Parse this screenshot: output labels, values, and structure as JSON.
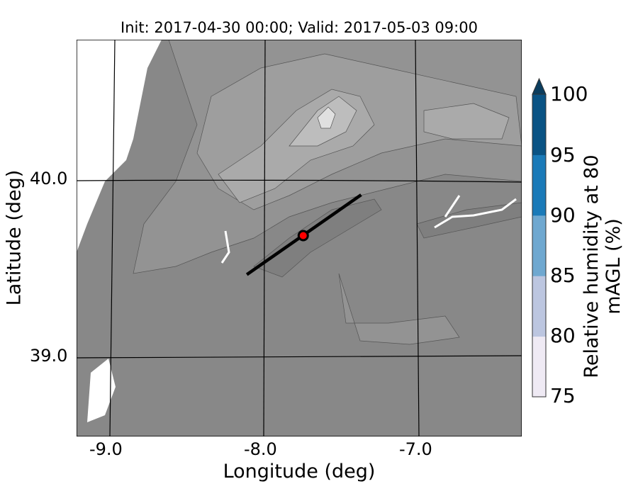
{
  "title": "Init: 2017-04-30 00:00; Valid: 2017-05-03 09:00",
  "xaxis": {
    "label": "Longitude (deg)",
    "ticks": [
      "-9.0",
      "-8.0",
      "-7.0"
    ]
  },
  "yaxis": {
    "label": "Latitude (deg)",
    "ticks": [
      "40.0",
      "39.0"
    ]
  },
  "colorbar": {
    "label": "Relative humidity at 80 mAGL (%)",
    "ticks": [
      "75",
      "80",
      "85",
      "90",
      "95",
      "100"
    ],
    "colors": [
      "#efeaf4",
      "#bcc6e0",
      "#6fa8d0",
      "#1a7ab8",
      "#0a5384"
    ],
    "extend_color": "#0b3d5e",
    "extend": "max"
  },
  "map": {
    "terrain_colors": [
      "#858585",
      "#8e8e8e",
      "#999999",
      "#a6a6a6",
      "#b5b5b5",
      "#c8c8c8",
      "#e6e6e6"
    ],
    "transect": {
      "start": [
        -8.12,
        39.47
      ],
      "end": [
        -7.37,
        39.92
      ]
    },
    "site_marker": {
      "lon": -7.75,
      "lat": 39.69,
      "color": "#ff0000"
    }
  }
}
